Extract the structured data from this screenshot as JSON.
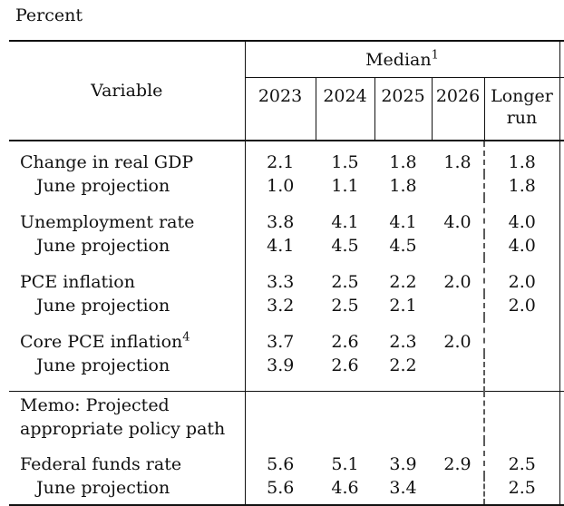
{
  "page": {
    "unit_label": "Percent"
  },
  "table": {
    "header": {
      "variable_label": "Variable",
      "median_label": "Median",
      "median_superscript": "1",
      "years": [
        "2023",
        "2024",
        "2025",
        "2026"
      ],
      "longer_run_label": "Longer run"
    },
    "rows": [
      {
        "label": "Change in real GDP",
        "values": [
          "2.1",
          "1.5",
          "1.8",
          "1.8",
          "1.8"
        ]
      },
      {
        "label": "June projection",
        "values": [
          "1.0",
          "1.1",
          "1.8",
          "",
          "1.8"
        ]
      },
      {
        "label": "Unemployment rate",
        "values": [
          "3.8",
          "4.1",
          "4.1",
          "4.0",
          "4.0"
        ]
      },
      {
        "label": "June projection",
        "values": [
          "4.1",
          "4.5",
          "4.5",
          "",
          "4.0"
        ]
      },
      {
        "label": "PCE inflation",
        "values": [
          "3.3",
          "2.5",
          "2.2",
          "2.0",
          "2.0"
        ]
      },
      {
        "label": "June projection",
        "values": [
          "3.2",
          "2.5",
          "2.1",
          "",
          "2.0"
        ]
      },
      {
        "label": "Core PCE inflation",
        "superscript": "4",
        "values": [
          "3.7",
          "2.6",
          "2.3",
          "2.0",
          ""
        ]
      },
      {
        "label": "June projection",
        "values": [
          "3.9",
          "2.6",
          "2.2",
          "",
          ""
        ]
      }
    ],
    "memo": {
      "line1": "Memo: Projected",
      "line2": "appropriate policy path"
    },
    "memo_rows": [
      {
        "label": "Federal funds rate",
        "values": [
          "5.6",
          "5.1",
          "3.9",
          "2.9",
          "2.5"
        ]
      },
      {
        "label": "June projection",
        "values": [
          "5.6",
          "4.6",
          "3.4",
          "",
          "2.5"
        ]
      }
    ]
  }
}
